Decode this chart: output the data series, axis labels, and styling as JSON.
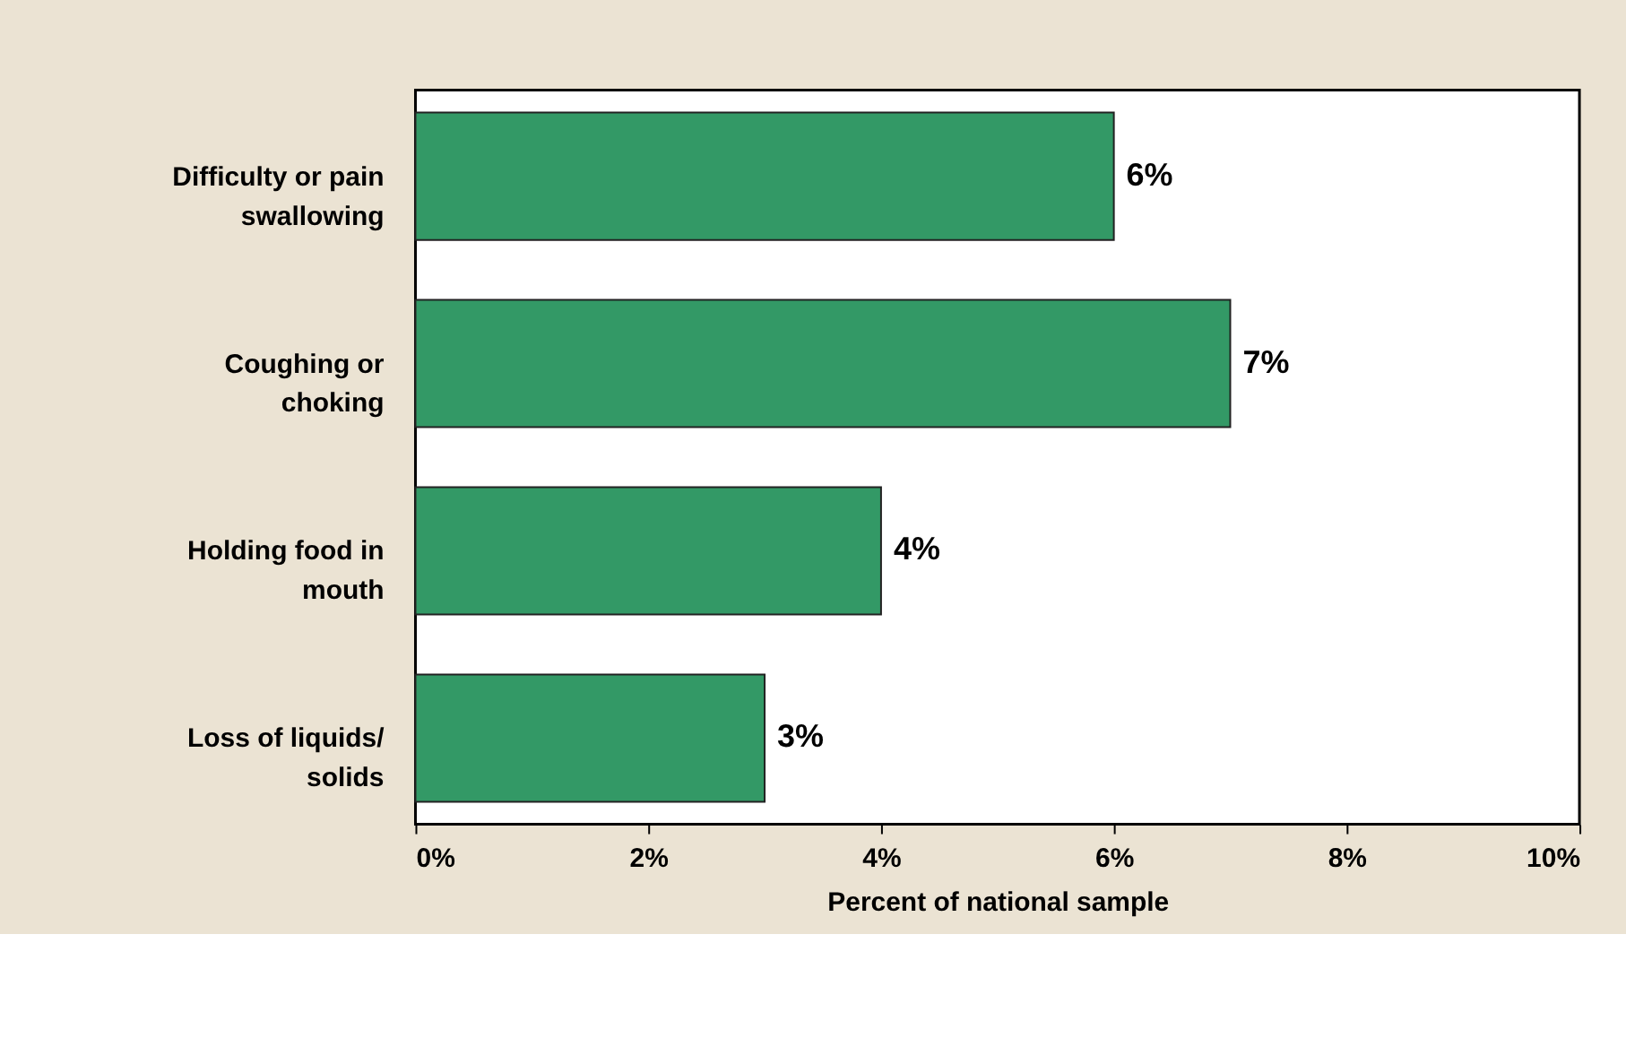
{
  "chart_data": {
    "type": "bar",
    "orientation": "horizontal",
    "xlabel": "Percent of national sample",
    "categories": [
      "Difficulty or pain swallowing",
      "Coughing or choking",
      "Holding food in mouth",
      "Loss of liquids/ solids"
    ],
    "values": [
      6,
      7,
      4,
      3
    ],
    "color": "#339966",
    "value_labels": [
      "6%",
      "7%",
      "4%",
      "3%"
    ],
    "xlim": [
      0,
      10
    ],
    "xticks": [
      {
        "value": 0,
        "label": "0%"
      },
      {
        "value": 2,
        "label": "2%"
      },
      {
        "value": 4,
        "label": "4%"
      },
      {
        "value": 6,
        "label": "6%"
      },
      {
        "value": 8,
        "label": "8%"
      },
      {
        "value": 10,
        "label": "10%"
      }
    ],
    "grid": false
  }
}
